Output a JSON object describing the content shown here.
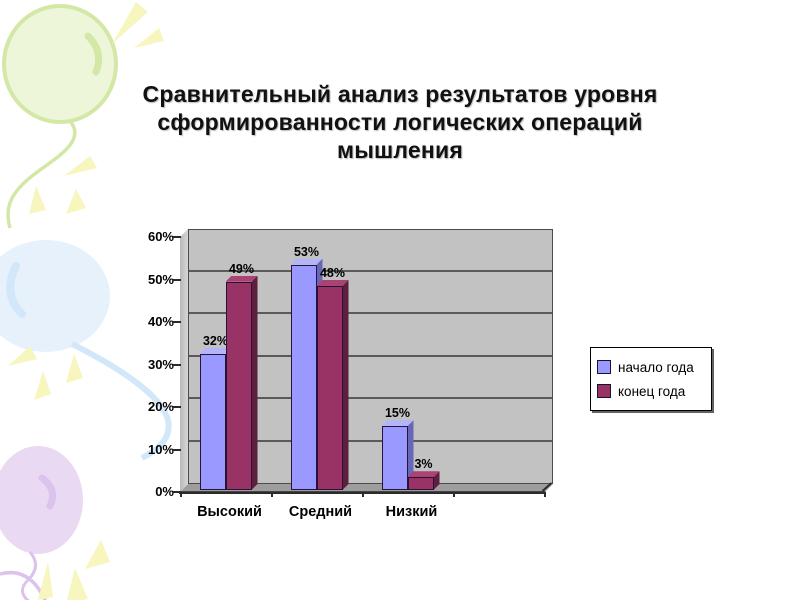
{
  "slide": {
    "title_lines": [
      "Сравнительный анализ результатов уровня",
      "сформированности логических операций",
      "мышления"
    ]
  },
  "chart_data": {
    "type": "bar",
    "style": "3d-clustered-column",
    "title": "",
    "xlabel": "",
    "ylabel": "",
    "categories": [
      "Высокий",
      "Средний",
      "Низкий"
    ],
    "series": [
      {
        "name": "начало года",
        "values": [
          32,
          53,
          15
        ],
        "color": "#9999FF",
        "color_top": "#B4B4FA",
        "color_side": "#6767B8"
      },
      {
        "name": "конец года",
        "values": [
          49,
          48,
          3
        ],
        "color": "#993366",
        "color_top": "#AA4273",
        "color_side": "#5E1F3E"
      }
    ],
    "data_labels": true,
    "value_label_suffix": "%",
    "yticks": [
      0,
      10,
      20,
      30,
      40,
      50,
      60
    ],
    "ytick_suffix": "%",
    "ylim": [
      0,
      60
    ],
    "grid": true,
    "legend_position": "right",
    "plot_background": "#C2C2C2"
  }
}
